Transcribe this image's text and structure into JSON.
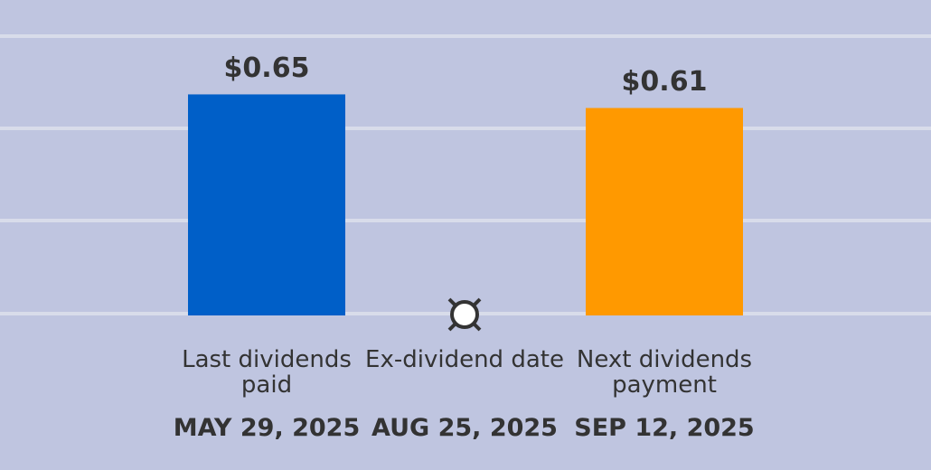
{
  "chart_data": {
    "type": "bar",
    "categories": [
      "Last dividends paid",
      "Ex-dividend date",
      "Next dividends payment"
    ],
    "dates": [
      "MAY 29, 2025",
      "AUG 25, 2025",
      "SEP 12, 2025"
    ],
    "values": [
      0.65,
      null,
      0.61
    ],
    "value_labels": [
      "$0.65",
      null,
      "$0.61"
    ],
    "colors": [
      "#005fc8",
      null,
      "#ff9900"
    ],
    "ylim": [
      0,
      0.8
    ]
  }
}
